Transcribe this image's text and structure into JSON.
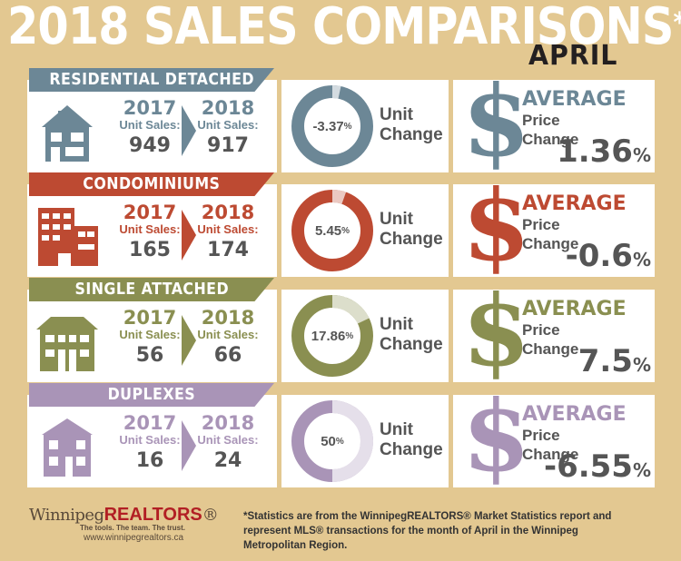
{
  "title": "2018 SALES COMPARISONS",
  "title_mark": "*",
  "month": "APRIL",
  "colors": {
    "residential": "#6c8796",
    "condo": "#bd4a32",
    "single": "#8a8f51",
    "duplex": "#a994b7",
    "background": "#e3c891"
  },
  "chart_data": [
    {
      "type": "pie",
      "category": "RESIDENTIAL DETACHED",
      "year_a": "2017",
      "year_b": "2018",
      "unit_label": "Unit Sales:",
      "sales_2017": 949,
      "sales_2018": 917,
      "unit_change_pct": -3.37,
      "unit_change_label": "-3.37",
      "avg_price_change_pct": 1.36,
      "avg_price_label": "1.36"
    },
    {
      "type": "pie",
      "category": "CONDOMINIUMS",
      "year_a": "2017",
      "year_b": "2018",
      "unit_label": "Unit Sales:",
      "sales_2017": 165,
      "sales_2018": 174,
      "unit_change_pct": 5.45,
      "unit_change_label": "5.45",
      "avg_price_change_pct": -0.6,
      "avg_price_label": "-0.6"
    },
    {
      "type": "pie",
      "category": "SINGLE ATTACHED",
      "year_a": "2017",
      "year_b": "2018",
      "unit_label": "Unit Sales:",
      "sales_2017": 56,
      "sales_2018": 66,
      "unit_change_pct": 17.86,
      "unit_change_label": "17.86",
      "avg_price_change_pct": 7.5,
      "avg_price_label": "7.5"
    },
    {
      "type": "pie",
      "category": "DUPLEXES",
      "year_a": "2017",
      "year_b": "2018",
      "unit_label": "Unit Sales:",
      "sales_2017": 16,
      "sales_2018": 24,
      "unit_change_pct": 50,
      "unit_change_label": "50",
      "avg_price_change_pct": -6.55,
      "avg_price_label": "-6.55"
    }
  ],
  "labels": {
    "unit": "Unit",
    "change": "Change",
    "average": "AVERAGE",
    "price": "Price",
    "dollar": "$",
    "percent": "%"
  },
  "logo": {
    "brand_a": "Winnipeg",
    "brand_b": "REALTORS",
    "reg": "®",
    "tagline": "The tools. The team. The trust.",
    "website": "www.winnipegrealtors.ca"
  },
  "footnote": "*Statistics are from the WinnipegREALTORS® Market Statistics report and represent MLS® transactions for the month of April in the Winnipeg Metropolitan Region."
}
